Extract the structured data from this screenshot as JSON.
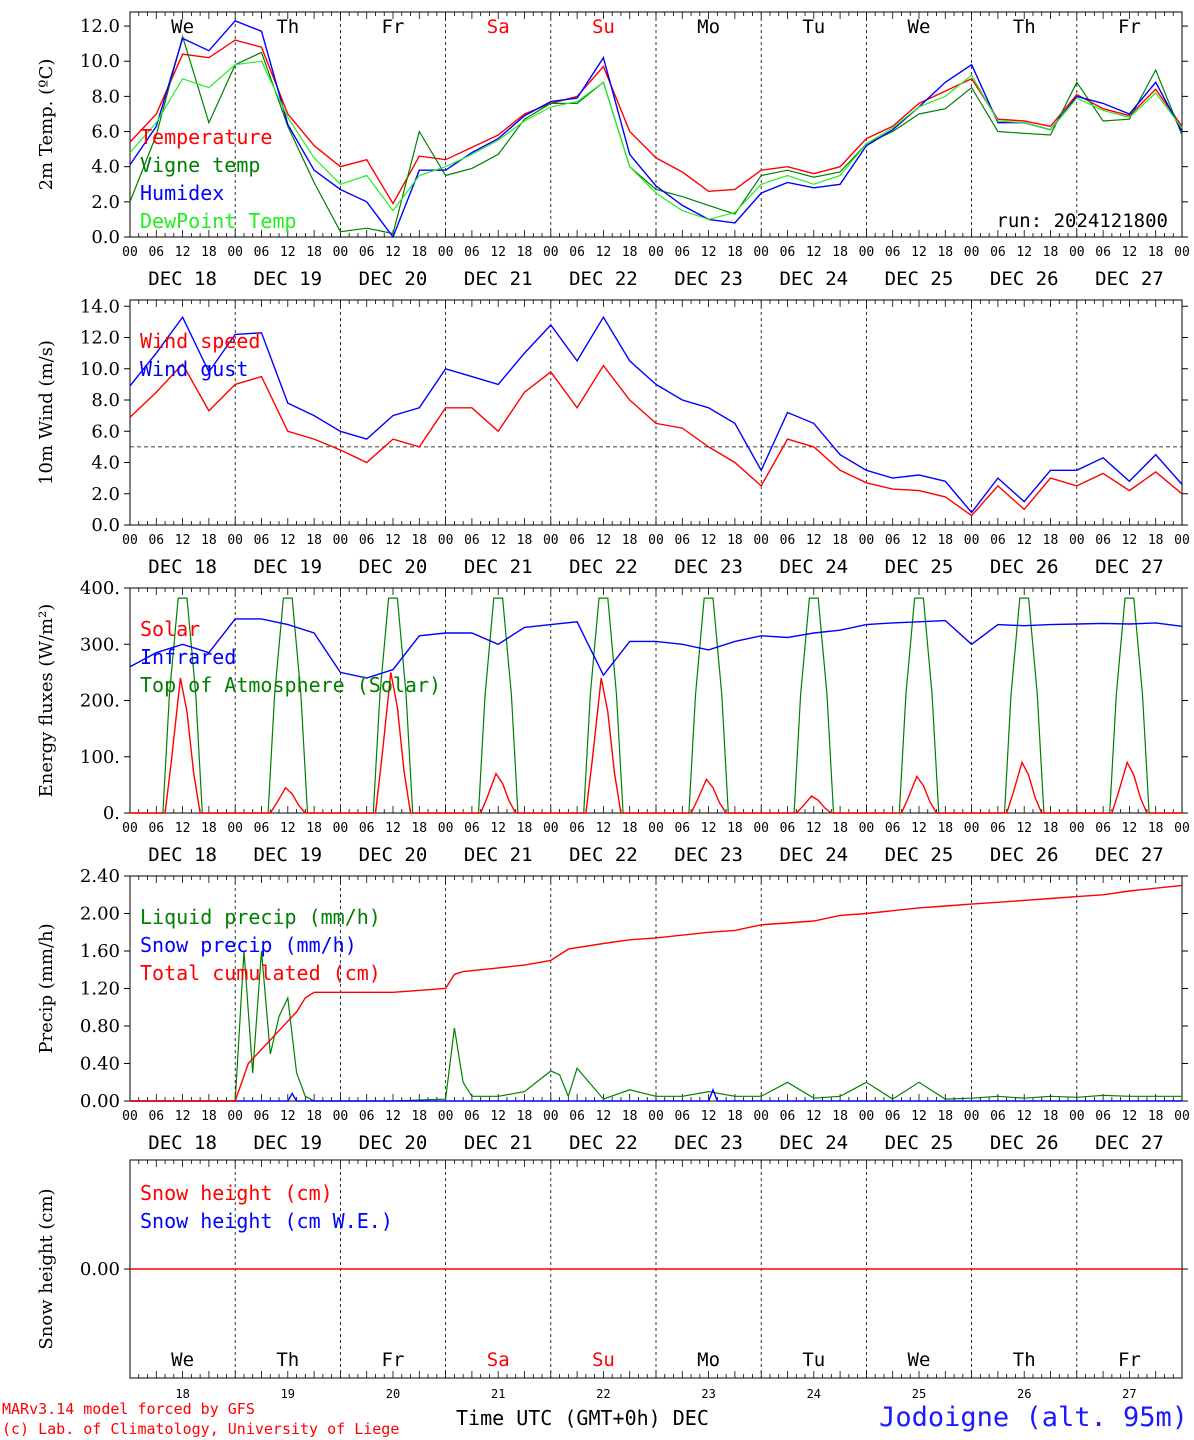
{
  "colors": {
    "red": "#ff0000",
    "green": "#008000",
    "blue": "#0000ff",
    "lightgreen": "#22ee22",
    "weekend": "#ff0000",
    "station": "#1a1aff"
  },
  "days": [
    {
      "abbr": "We",
      "date": "DEC 18",
      "num": "18",
      "weekend": false
    },
    {
      "abbr": "Th",
      "date": "DEC 19",
      "num": "19",
      "weekend": false
    },
    {
      "abbr": "Fr",
      "date": "DEC 20",
      "num": "20",
      "weekend": false
    },
    {
      "abbr": "Sa",
      "date": "DEC 21",
      "num": "21",
      "weekend": true
    },
    {
      "abbr": "Su",
      "date": "DEC 22",
      "num": "22",
      "weekend": true
    },
    {
      "abbr": "Mo",
      "date": "DEC 23",
      "num": "23",
      "weekend": false
    },
    {
      "abbr": "Tu",
      "date": "DEC 24",
      "num": "24",
      "weekend": false
    },
    {
      "abbr": "We",
      "date": "DEC 25",
      "num": "25",
      "weekend": false
    },
    {
      "abbr": "Th",
      "date": "DEC 26",
      "num": "26",
      "weekend": false
    },
    {
      "abbr": "Fr",
      "date": "DEC 27",
      "num": "27",
      "weekend": false
    }
  ],
  "hour_ticks": [
    "00",
    "06",
    "12",
    "18"
  ],
  "chart_data": [
    {
      "type": "line",
      "ylabel": "2m Temp. (ºC)",
      "ylim": [
        0,
        12.8
      ],
      "yticks": [
        0,
        2,
        4,
        6,
        8,
        10,
        12
      ],
      "ytick_labels": [
        "0.0",
        "2.0",
        "4.0",
        "6.0",
        "8.0",
        "10.0",
        "12.0"
      ],
      "annotation": "run: 2024121800",
      "x_unit": "hours from 00 UTC DEC 18",
      "legend": "top-left",
      "series": [
        {
          "name": "Temperature",
          "color": "red",
          "x": [
            0,
            6,
            12,
            18,
            24,
            30,
            36,
            42,
            48,
            54,
            60,
            66,
            72,
            78,
            84,
            90,
            96,
            102,
            108,
            114,
            120,
            126,
            132,
            138,
            144,
            150,
            156,
            162,
            168,
            174,
            180,
            186,
            192,
            198,
            204,
            210,
            216,
            222,
            228,
            234,
            240
          ],
          "y": [
            5.4,
            7.0,
            10.4,
            10.2,
            11.2,
            10.8,
            7.0,
            5.2,
            4.0,
            4.4,
            1.9,
            4.6,
            4.4,
            5.1,
            5.8,
            7.0,
            7.6,
            8.0,
            9.7,
            6.0,
            4.5,
            3.7,
            2.6,
            2.7,
            3.8,
            4.0,
            3.6,
            4.0,
            5.6,
            6.3,
            7.6,
            8.3,
            9.0,
            6.7,
            6.6,
            6.3,
            8.1,
            7.3,
            6.9,
            8.4,
            6.3
          ]
        },
        {
          "name": "Vigne temp",
          "color": "green",
          "x": [
            0,
            6,
            12,
            18,
            24,
            30,
            36,
            42,
            48,
            54,
            60,
            66,
            72,
            78,
            84,
            90,
            96,
            102,
            108,
            114,
            120,
            126,
            132,
            138,
            144,
            150,
            156,
            162,
            168,
            174,
            180,
            186,
            192,
            198,
            204,
            210,
            216,
            222,
            228,
            234,
            240
          ],
          "y": [
            2.0,
            5.8,
            11.4,
            6.5,
            9.8,
            10.5,
            6.3,
            3.1,
            0.3,
            0.5,
            0.2,
            6.0,
            3.5,
            3.9,
            4.7,
            6.7,
            7.6,
            7.6,
            8.8,
            4.0,
            2.7,
            2.3,
            1.8,
            1.3,
            3.5,
            3.8,
            3.4,
            3.7,
            5.3,
            6.0,
            7.0,
            7.3,
            8.5,
            6.0,
            5.9,
            5.8,
            8.8,
            6.6,
            6.7,
            9.5,
            5.8
          ]
        },
        {
          "name": "Humidex",
          "color": "blue",
          "x": [
            0,
            6,
            12,
            18,
            24,
            30,
            36,
            42,
            48,
            54,
            60,
            66,
            72,
            78,
            84,
            90,
            96,
            102,
            108,
            114,
            120,
            126,
            132,
            138,
            144,
            150,
            156,
            162,
            168,
            174,
            180,
            186,
            192,
            198,
            204,
            210,
            216,
            222,
            228,
            234,
            240
          ],
          "y": [
            4.1,
            6.3,
            11.3,
            10.6,
            12.3,
            11.7,
            6.4,
            3.8,
            2.7,
            2.0,
            0.0,
            3.8,
            3.8,
            4.8,
            5.6,
            6.9,
            7.7,
            7.9,
            10.2,
            4.7,
            2.9,
            1.8,
            1.0,
            0.8,
            2.5,
            3.1,
            2.8,
            3.0,
            5.2,
            6.1,
            7.4,
            8.8,
            9.8,
            6.5,
            6.5,
            6.1,
            8.0,
            7.6,
            7.0,
            8.8,
            6.0
          ]
        },
        {
          "name": "DewPoint Temp",
          "color": "lightgreen",
          "x": [
            0,
            6,
            12,
            18,
            24,
            30,
            36,
            42,
            48,
            54,
            60,
            66,
            72,
            78,
            84,
            90,
            96,
            102,
            108,
            114,
            120,
            126,
            132,
            138,
            144,
            150,
            156,
            162,
            168,
            174,
            180,
            186,
            192,
            198,
            204,
            210,
            216,
            222,
            228,
            234,
            240
          ],
          "y": [
            4.8,
            6.5,
            9.0,
            8.5,
            9.8,
            10.0,
            6.8,
            4.5,
            3.0,
            3.5,
            1.5,
            3.5,
            4.0,
            4.7,
            5.5,
            6.6,
            7.4,
            7.7,
            8.8,
            4.0,
            2.5,
            1.5,
            1.0,
            1.4,
            3.0,
            3.5,
            3.0,
            3.5,
            5.3,
            6.2,
            7.4,
            8.0,
            9.2,
            6.6,
            6.5,
            6.1,
            7.9,
            7.2,
            6.8,
            8.2,
            6.2
          ]
        }
      ]
    },
    {
      "type": "line",
      "ylabel": "10m Wind (m/s)",
      "ylim": [
        0,
        14.4
      ],
      "yticks": [
        0,
        2,
        4,
        6,
        8,
        10,
        12,
        14
      ],
      "ytick_labels": [
        "0.0",
        "2.0",
        "4.0",
        "6.0",
        "8.0",
        "10.0",
        "12.0",
        "14.0"
      ],
      "hline": 5,
      "x_unit": "hours from 00 UTC DEC 18",
      "legend": "top-left",
      "series": [
        {
          "name": "Wind speed",
          "color": "red",
          "x": [
            0,
            6,
            12,
            18,
            24,
            30,
            36,
            42,
            48,
            54,
            60,
            66,
            72,
            78,
            84,
            90,
            96,
            102,
            108,
            114,
            120,
            126,
            132,
            138,
            144,
            150,
            156,
            162,
            168,
            174,
            180,
            186,
            192,
            198,
            204,
            210,
            216,
            222,
            228,
            234,
            240
          ],
          "y": [
            6.9,
            8.5,
            10.3,
            7.3,
            9.0,
            9.5,
            6.0,
            5.5,
            4.8,
            4.0,
            5.5,
            5.0,
            7.5,
            7.5,
            6.0,
            8.5,
            9.8,
            7.5,
            10.2,
            8.0,
            6.5,
            6.2,
            5.0,
            4.0,
            2.5,
            5.5,
            5.0,
            3.5,
            2.7,
            2.3,
            2.2,
            1.8,
            0.6,
            2.5,
            1.0,
            3.0,
            2.5,
            3.3,
            2.2,
            3.4,
            2.0
          ]
        },
        {
          "name": "Wind gust",
          "color": "blue",
          "x": [
            0,
            6,
            12,
            18,
            24,
            30,
            36,
            42,
            48,
            54,
            60,
            66,
            72,
            78,
            84,
            90,
            96,
            102,
            108,
            114,
            120,
            126,
            132,
            138,
            144,
            150,
            156,
            162,
            168,
            174,
            180,
            186,
            192,
            198,
            204,
            210,
            216,
            222,
            228,
            234,
            240
          ],
          "y": [
            8.9,
            11.0,
            13.3,
            9.8,
            12.2,
            12.3,
            7.8,
            7.0,
            6.0,
            5.5,
            7.0,
            7.5,
            10.0,
            9.5,
            9.0,
            11.0,
            12.8,
            10.5,
            13.3,
            10.5,
            9.0,
            8.0,
            7.5,
            6.5,
            3.5,
            7.2,
            6.5,
            4.5,
            3.5,
            3.0,
            3.2,
            2.8,
            0.8,
            3.0,
            1.5,
            3.5,
            3.5,
            4.3,
            2.8,
            4.5,
            2.6
          ]
        }
      ]
    },
    {
      "type": "line",
      "ylabel": "Energy fluxes (W/m²)",
      "ylim": [
        0,
        400
      ],
      "yticks": [
        0,
        100,
        200,
        300,
        400
      ],
      "ytick_labels": [
        "0.",
        "100.",
        "200.",
        "300.",
        "400."
      ],
      "x_unit": "hours from 00 UTC DEC 18",
      "legend": "top-left",
      "day_peaks_solar": [
        240,
        45,
        250,
        70,
        240,
        60,
        30,
        65,
        90,
        90
      ],
      "toa_peak": 382,
      "series_infrared": {
        "x": [
          0,
          6,
          12,
          18,
          24,
          30,
          36,
          42,
          48,
          54,
          60,
          66,
          72,
          78,
          84,
          90,
          96,
          102,
          108,
          114,
          120,
          126,
          132,
          138,
          144,
          150,
          156,
          162,
          168,
          174,
          180,
          186,
          192,
          198,
          204,
          210,
          216,
          222,
          228,
          234,
          240
        ],
        "y": [
          260,
          285,
          300,
          285,
          345,
          345,
          335,
          320,
          250,
          240,
          255,
          315,
          320,
          320,
          300,
          330,
          335,
          340,
          245,
          305,
          305,
          300,
          290,
          305,
          315,
          312,
          320,
          325,
          335,
          338,
          340,
          342,
          300,
          335,
          333,
          335,
          336,
          337,
          336,
          338,
          332
        ]
      },
      "series": [
        {
          "name": "Solar",
          "color": "red"
        },
        {
          "name": "Infrared",
          "color": "blue"
        },
        {
          "name": "Top of Atmosphere (Solar)",
          "color": "green"
        }
      ]
    },
    {
      "type": "line",
      "ylabel": "Precip (mm/h)",
      "ylim": [
        0,
        2.4
      ],
      "yticks": [
        0,
        0.4,
        0.8,
        1.2,
        1.6,
        2.0,
        2.4
      ],
      "ytick_labels": [
        "0.00",
        "0.40",
        "0.80",
        "1.20",
        "1.60",
        "2.00",
        "2.40"
      ],
      "x_unit": "hours from 00 UTC DEC 18",
      "legend": "top-left",
      "series": [
        {
          "name": "Liquid precip (mm/h)",
          "color": "green",
          "x": [
            0,
            6,
            12,
            18,
            24,
            26,
            28,
            30,
            32,
            34,
            36,
            38,
            40,
            42,
            48,
            60,
            72,
            74,
            76,
            78,
            84,
            90,
            96,
            98,
            100,
            102,
            108,
            114,
            120,
            126,
            132,
            138,
            144,
            150,
            156,
            162,
            168,
            174,
            180,
            186,
            192,
            198,
            204,
            210,
            216,
            222,
            228,
            234,
            240
          ],
          "y": [
            0,
            0,
            0,
            0,
            0,
            1.6,
            0.3,
            1.6,
            0.5,
            0.9,
            1.1,
            0.3,
            0.05,
            0,
            0,
            0,
            0.02,
            0.78,
            0.2,
            0.05,
            0.05,
            0.1,
            0.32,
            0.28,
            0.05,
            0.35,
            0.02,
            0.12,
            0.05,
            0.05,
            0.1,
            0.05,
            0.05,
            0.2,
            0.03,
            0.05,
            0.2,
            0.02,
            0.2,
            0.02,
            0.03,
            0.05,
            0.03,
            0.05,
            0.04,
            0.06,
            0.05,
            0.05,
            0.05
          ]
        },
        {
          "name": "Snow precip (mm/h)",
          "color": "blue",
          "x": [
            0,
            36,
            37,
            38,
            96,
            132,
            133,
            134,
            240
          ],
          "y": [
            0,
            0,
            0.08,
            0,
            0,
            0,
            0.12,
            0,
            0
          ]
        },
        {
          "name": "Total cumulated (cm)",
          "color": "red",
          "x": [
            0,
            24,
            27,
            30,
            34,
            38,
            40,
            42,
            48,
            60,
            72,
            74,
            76,
            84,
            90,
            96,
            100,
            108,
            114,
            120,
            132,
            138,
            144,
            156,
            162,
            168,
            180,
            186,
            192,
            198,
            204,
            210,
            216,
            222,
            228,
            234,
            240
          ],
          "y": [
            0,
            0,
            0.4,
            0.55,
            0.75,
            0.95,
            1.1,
            1.16,
            1.16,
            1.16,
            1.2,
            1.35,
            1.38,
            1.42,
            1.45,
            1.5,
            1.62,
            1.68,
            1.72,
            1.74,
            1.8,
            1.82,
            1.88,
            1.92,
            1.98,
            2.0,
            2.06,
            2.08,
            2.1,
            2.12,
            2.14,
            2.16,
            2.18,
            2.2,
            2.24,
            2.27,
            2.3
          ]
        }
      ]
    },
    {
      "type": "line",
      "ylabel": "Snow height (cm)",
      "ylim": [
        -1,
        1
      ],
      "yticks": [
        0
      ],
      "ytick_labels": [
        "0.00"
      ],
      "x_unit": "hours from 00 UTC DEC 18",
      "legend": "top-left",
      "series": [
        {
          "name": "Snow height (cm)",
          "color": "red",
          "x": [
            0,
            240
          ],
          "y": [
            0,
            0
          ]
        },
        {
          "name": "Snow height (cm W.E.)",
          "color": "blue"
        }
      ]
    }
  ],
  "footer": {
    "credit_line1": "MARv3.14 model forced by GFS",
    "credit_line2": "(c) Lab. of Climatology, University of Liege",
    "x_unit_label": "Time UTC (GMT+0h) DEC",
    "station": "Jodoigne (alt. 95m)"
  }
}
